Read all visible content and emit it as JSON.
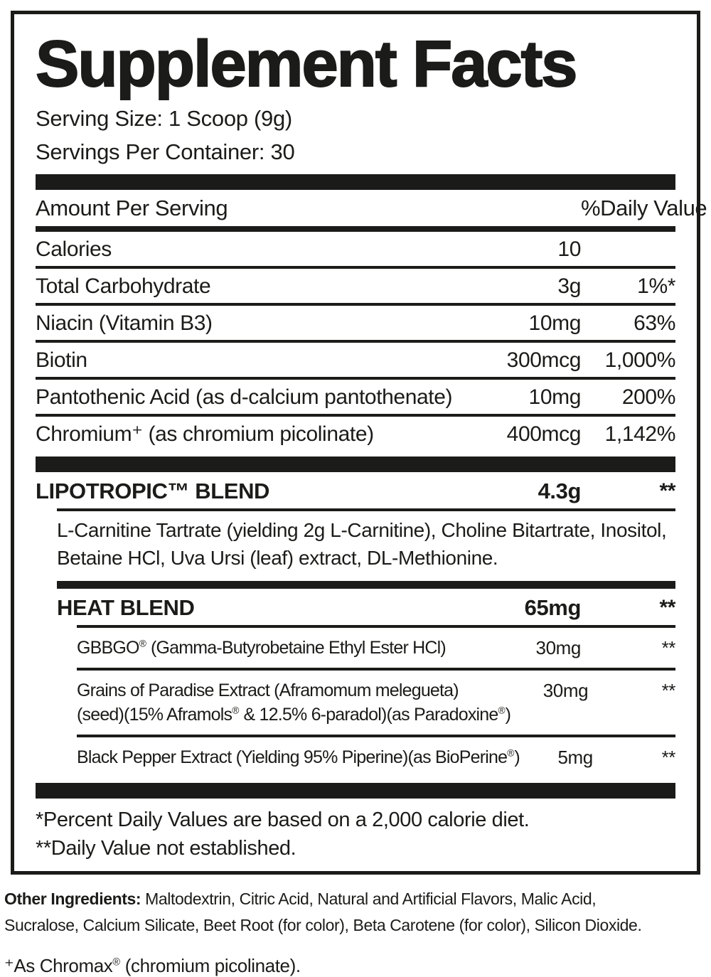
{
  "panel": {
    "title": "Supplement Facts",
    "serving_size": "Serving Size: 1 Scoop (9g)",
    "servings_per_container": "Servings Per Container: 30",
    "header": {
      "amount_label": "Amount Per Serving",
      "dv_label": "%Daily Value"
    },
    "nutrients": [
      {
        "name": "Calories",
        "amount": "10",
        "dv": ""
      },
      {
        "name": "Total Carbohydrate",
        "amount": "3g",
        "dv": "1%*"
      },
      {
        "name": "Niacin (Vitamin B3)",
        "amount": "10mg",
        "dv": "63%"
      },
      {
        "name": "Biotin",
        "amount": "300mcg",
        "dv": "1,000%"
      },
      {
        "name": "Pantothenic Acid (as d-calcium pantothenate)",
        "amount": "10mg",
        "dv": "200%"
      },
      {
        "name": "Chromium⁺ (as chromium picolinate)",
        "amount": "400mcg",
        "dv": "1,142%"
      }
    ],
    "blends": {
      "lipotropic": {
        "name": "LIPOTROPIC™ BLEND",
        "amount": "4.3g",
        "dv": "**",
        "ingredients": "L-Carnitine Tartrate (yielding 2g L-Carnitine), Choline Bitartrate, Inositol, Betaine HCl, Uva Ursi (leaf) extract, DL-Methionine."
      },
      "heat": {
        "name": "HEAT BLEND",
        "amount": "65mg",
        "dv": "**",
        "items": [
          {
            "name": "GBBGO® (Gamma-Butyrobetaine Ethyl Ester HCl)",
            "name_line2": "",
            "amount": "30mg",
            "dv": "**"
          },
          {
            "name": "Grains of Paradise Extract (Aframomum melegueta)",
            "name_line2": "(seed)(15% Aframols® & 12.5% 6-paradol)(as Paradoxine®)",
            "amount": "30mg",
            "dv": "**"
          },
          {
            "name": "Black Pepper Extract (Yielding 95% Piperine)(as BioPerine®)",
            "name_line2": "",
            "amount": "5mg",
            "dv": "**"
          }
        ]
      }
    },
    "footnotes": {
      "percent_dv": "*Percent Daily Values are based on a 2,000 calorie diet.",
      "not_established": "**Daily Value not established."
    }
  },
  "below": {
    "other_ingredients_label": "Other Ingredients:",
    "other_ingredients_line1": " Maltodextrin, Citric Acid, Natural and Artificial Flavors, Malic Acid,",
    "other_ingredients_line2": "Sucralose, Calcium Silicate, Beet Root (for color), Beta Carotene (for color), Silicon Dioxide.",
    "chromax_note": "⁺As Chromax® (chromium picolinate)."
  }
}
